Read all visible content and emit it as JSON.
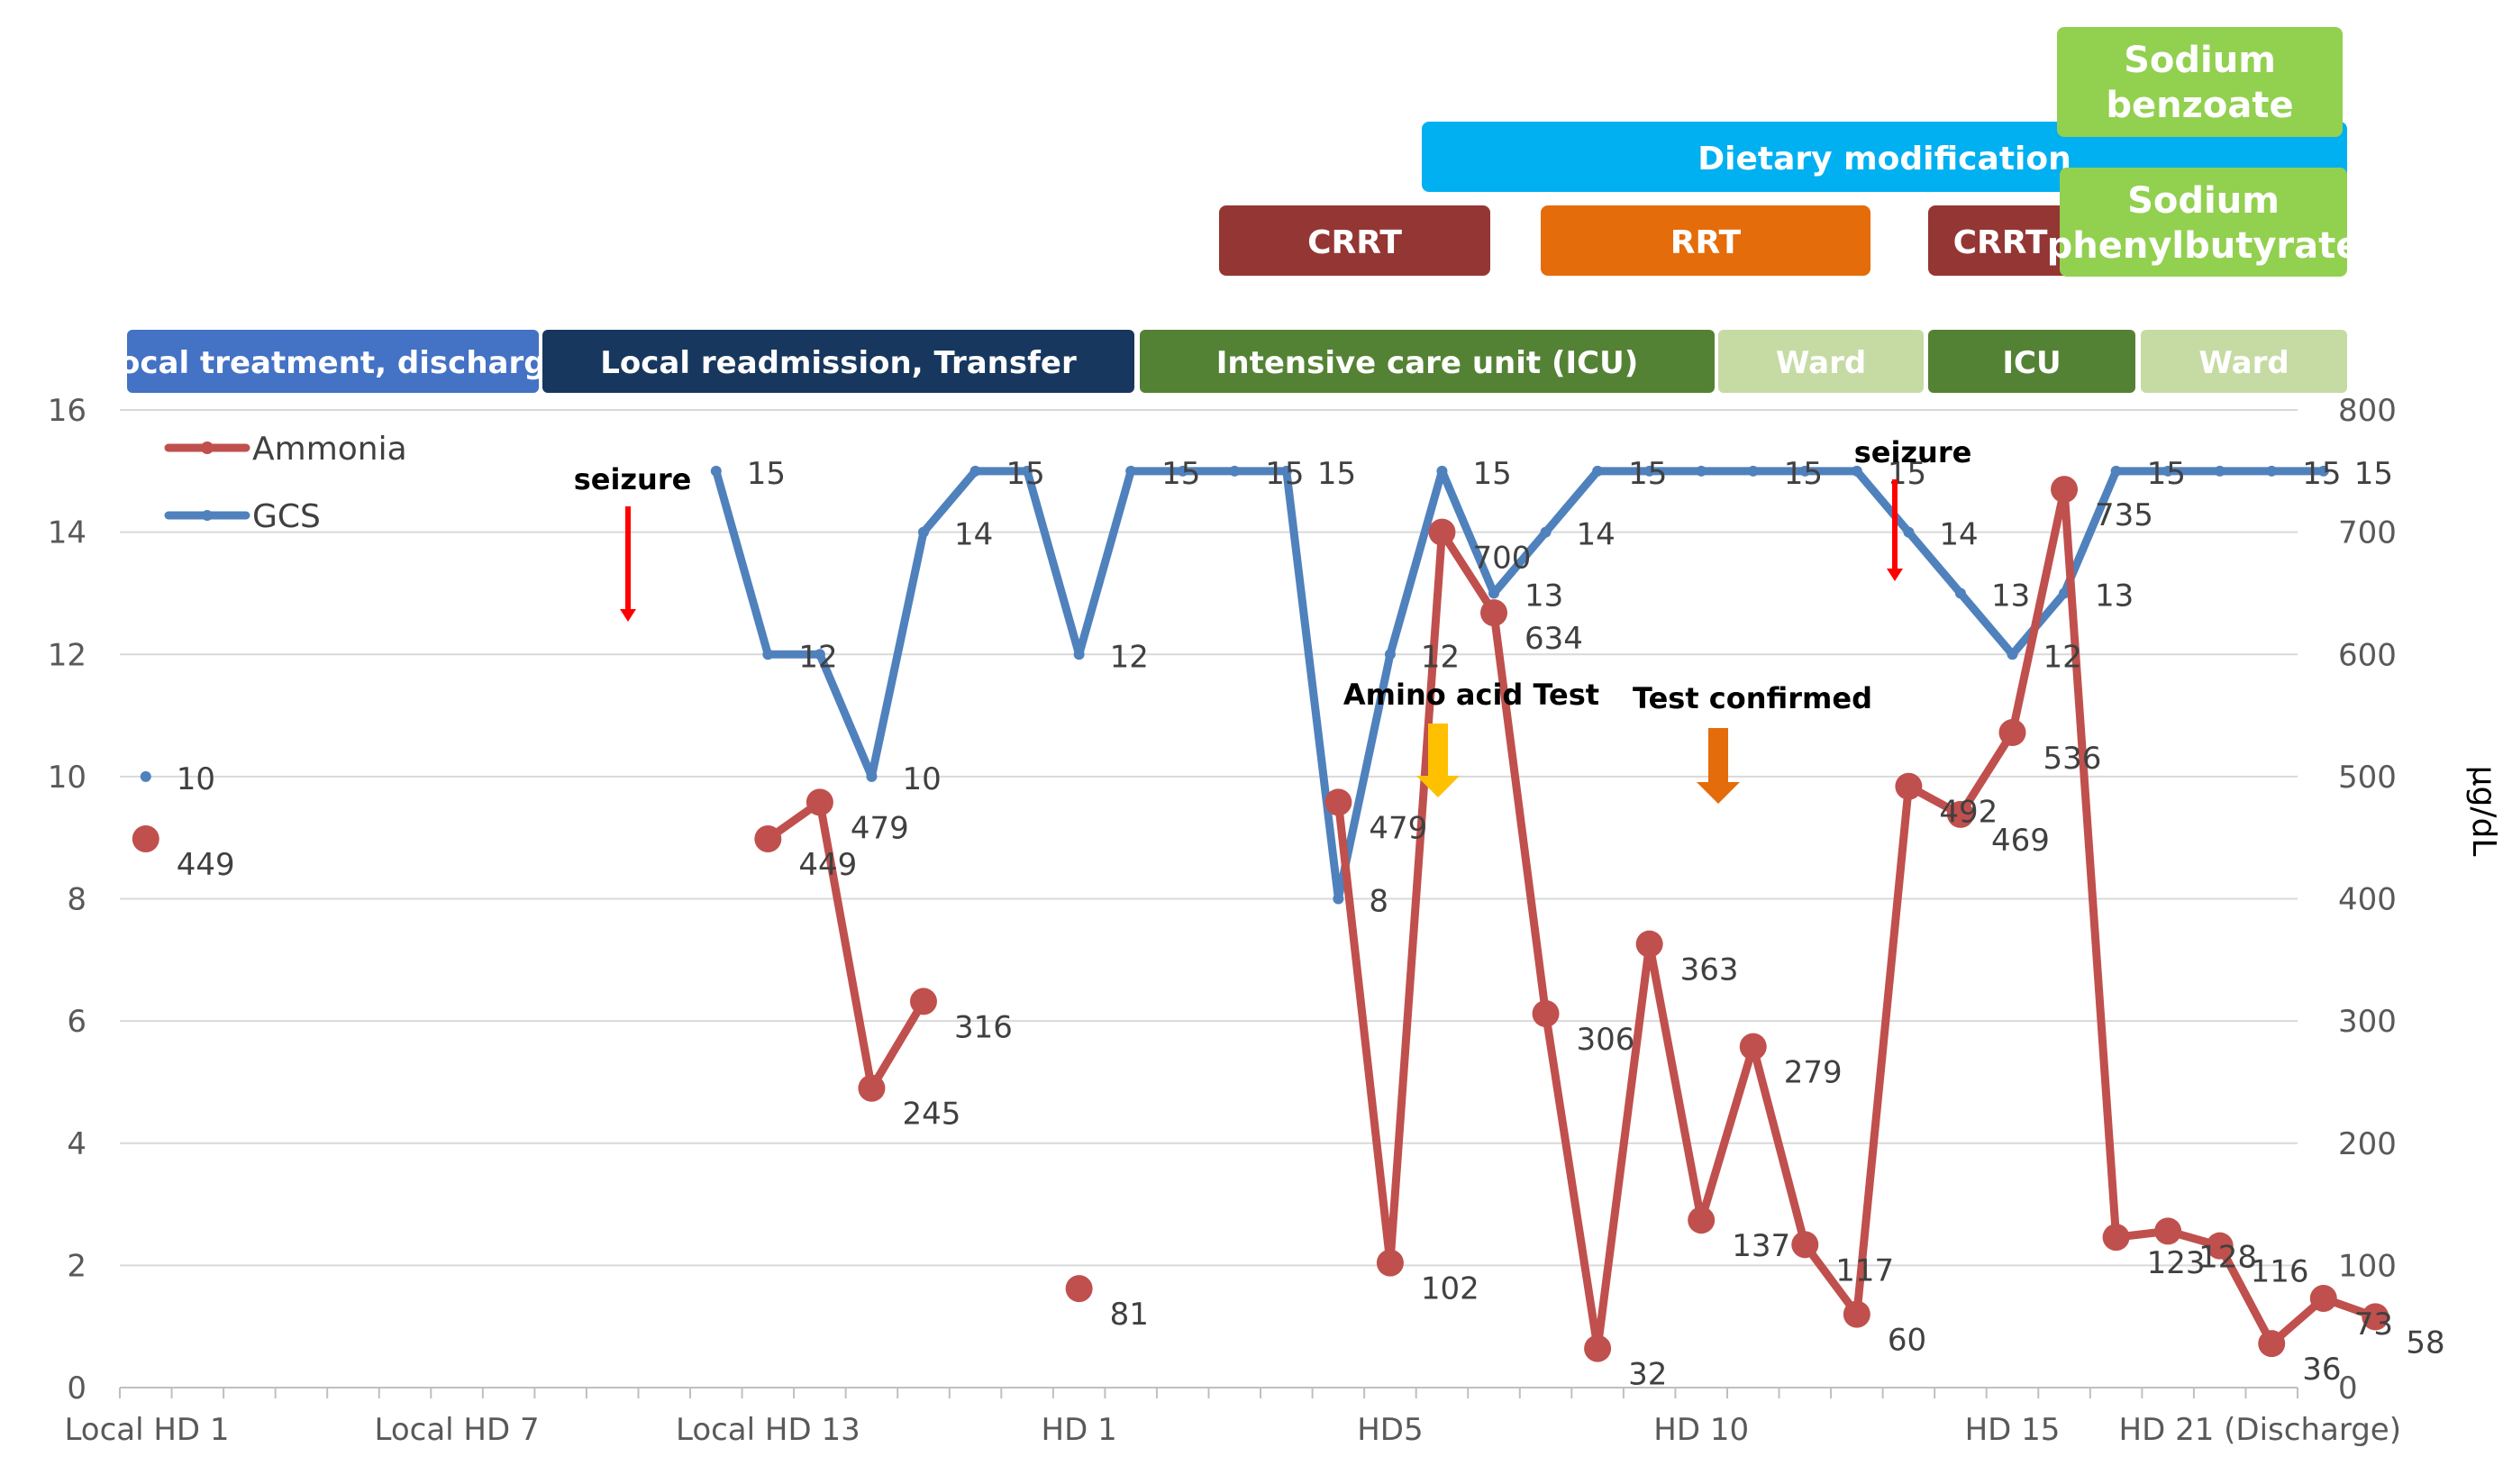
{
  "chart_data": {
    "type": "line",
    "categories": [
      "Local HD 1",
      "",
      "",
      "",
      "",
      "",
      "Local HD 7",
      "",
      "",
      "",
      "",
      "",
      "Local HD 13",
      "",
      "",
      "",
      "",
      "",
      "HD 1",
      "",
      "",
      "",
      "",
      "",
      "HD5",
      "",
      "",
      "",
      "",
      "",
      "HD 10",
      "",
      "",
      "",
      "",
      "",
      "HD 15",
      "",
      "",
      "",
      "",
      "",
      "HD 21 (Discharge)"
    ],
    "x_tick_labels": [
      "Local HD 1",
      "Local HD 7",
      "Local HD 13",
      "HD 1",
      "HD5",
      "HD 10",
      "HD 15",
      "HD 21 (Discharge)"
    ],
    "y_left": {
      "min": 0,
      "max": 16,
      "ticks": [
        "0",
        "2",
        "4",
        "6",
        "8",
        "10",
        "12",
        "14",
        "16"
      ]
    },
    "y_right": {
      "min": 0,
      "max": 800,
      "ticks": [
        "0",
        "100",
        "200",
        "300",
        "400",
        "500",
        "600",
        "700",
        "800"
      ],
      "label": "μg/dL"
    },
    "legend": [
      {
        "name": "Ammonia",
        "color": "#c0504d"
      },
      {
        "name": "GCS",
        "color": "#4f81bd"
      }
    ],
    "legend_position": "top-left",
    "grid": true,
    "series": [
      {
        "name": "GCS",
        "axis": "left",
        "color": "#4f81bd",
        "points": [
          {
            "x": 0,
            "y": 10,
            "label": "10"
          },
          {
            "x": 6,
            "y": 15,
            "label": "15"
          },
          {
            "x": 7,
            "y": 12,
            "label": "12"
          },
          {
            "x": 8,
            "y": 12,
            "label": ""
          },
          {
            "x": 9,
            "y": 10,
            "label": "10"
          },
          {
            "x": 10,
            "y": 14,
            "label": "14"
          },
          {
            "x": 11,
            "y": 15,
            "label": "15"
          },
          {
            "x": 12,
            "y": 15,
            "label": ""
          },
          {
            "x": 13,
            "y": 12,
            "label": "12"
          },
          {
            "x": 14,
            "y": 15,
            "label": "15"
          },
          {
            "x": 15,
            "y": 15,
            "label": ""
          },
          {
            "x": 16,
            "y": 15,
            "label": "15"
          },
          {
            "x": 17,
            "y": 15,
            "label": "15"
          },
          {
            "x": 18,
            "y": 8,
            "label": "8"
          },
          {
            "x": 19,
            "y": 12,
            "label": "12"
          },
          {
            "x": 20,
            "y": 15,
            "label": "15"
          },
          {
            "x": 21,
            "y": 13,
            "label": "13"
          },
          {
            "x": 22,
            "y": 14,
            "label": "14"
          },
          {
            "x": 23,
            "y": 15,
            "label": "15"
          },
          {
            "x": 24,
            "y": 15,
            "label": ""
          },
          {
            "x": 25,
            "y": 15,
            "label": ""
          },
          {
            "x": 26,
            "y": 15,
            "label": "15"
          },
          {
            "x": 27,
            "y": 15,
            "label": ""
          },
          {
            "x": 28,
            "y": 15,
            "label": "15"
          },
          {
            "x": 29,
            "y": 14,
            "label": "14"
          },
          {
            "x": 30,
            "y": 13,
            "label": "13"
          },
          {
            "x": 31,
            "y": 12,
            "label": "12"
          },
          {
            "x": 32,
            "y": 13,
            "label": "13"
          },
          {
            "x": 33,
            "y": 15,
            "label": "15"
          },
          {
            "x": 34,
            "y": 15,
            "label": ""
          },
          {
            "x": 35,
            "y": 15,
            "label": ""
          },
          {
            "x": 36,
            "y": 15,
            "label": "15"
          },
          {
            "x": 37,
            "y": 15,
            "label": "15"
          }
        ]
      },
      {
        "name": "Ammonia",
        "axis": "right",
        "color": "#c0504d",
        "points": [
          {
            "x": 0,
            "y": 449,
            "label": "449"
          },
          {
            "x": 7,
            "y": 449,
            "label": "449"
          },
          {
            "x": 8,
            "y": 479,
            "label": "479"
          },
          {
            "x": 9,
            "y": 245,
            "label": "245"
          },
          {
            "x": 10,
            "y": 316,
            "label": "316"
          },
          {
            "x": 13,
            "y": 81,
            "label": "81"
          },
          {
            "x": 18,
            "y": 479,
            "label": "479"
          },
          {
            "x": 19,
            "y": 102,
            "label": "102"
          },
          {
            "x": 20,
            "y": 700,
            "label": "700"
          },
          {
            "x": 21,
            "y": 634,
            "label": "634"
          },
          {
            "x": 22,
            "y": 306,
            "label": "306"
          },
          {
            "x": 23,
            "y": 32,
            "label": "32"
          },
          {
            "x": 24,
            "y": 363,
            "label": "363"
          },
          {
            "x": 25,
            "y": 137,
            "label": "137"
          },
          {
            "x": 26,
            "y": 279,
            "label": "279"
          },
          {
            "x": 27,
            "y": 117,
            "label": "117"
          },
          {
            "x": 28,
            "y": 60,
            "label": "60"
          },
          {
            "x": 29,
            "y": 492,
            "label": "492"
          },
          {
            "x": 30,
            "y": 469,
            "label": "469"
          },
          {
            "x": 31,
            "y": 536,
            "label": "536"
          },
          {
            "x": 32,
            "y": 735,
            "label": "735"
          },
          {
            "x": 33,
            "y": 123,
            "label": "123"
          },
          {
            "x": 34,
            "y": 128,
            "label": "128"
          },
          {
            "x": 35,
            "y": 116,
            "label": "116"
          },
          {
            "x": 36,
            "y": 36,
            "label": "36"
          },
          {
            "x": 37,
            "y": 73,
            "label": "73"
          },
          {
            "x": 38,
            "y": 58,
            "label": "58"
          }
        ]
      }
    ],
    "location_bands": [
      {
        "label": "Local treatment, discharge",
        "color": "#4472c4"
      },
      {
        "label": "Local readmission, Transfer",
        "color": "#17375e"
      },
      {
        "label": "Intensive care unit (ICU)",
        "color": "#548235"
      },
      {
        "label": "Ward",
        "color": "#c5dba3"
      },
      {
        "label": "ICU",
        "color": "#548235"
      },
      {
        "label": "Ward",
        "color": "#c5dba3"
      }
    ],
    "treatment_bars": [
      {
        "label": "Dietary modification",
        "color": "#00b0f0"
      },
      {
        "label": "CRRT",
        "color": "#943634"
      },
      {
        "label": "RRT",
        "color": "#e46c0a"
      },
      {
        "label": "CRRT",
        "color": "#943634"
      },
      {
        "label": "Sodium benzoate",
        "color": "#92d050"
      },
      {
        "label": "Sodium phenylbutyrate",
        "color": "#92d050"
      }
    ],
    "annotations": [
      {
        "text": "seizure",
        "arrow_color": "#ff0000"
      },
      {
        "text": "Amino acid Test",
        "arrow_color": "#ffc000"
      },
      {
        "text": "Test confirmed",
        "arrow_color": "#e46c0a"
      },
      {
        "text": "seizure",
        "arrow_color": "#ff0000"
      }
    ]
  }
}
